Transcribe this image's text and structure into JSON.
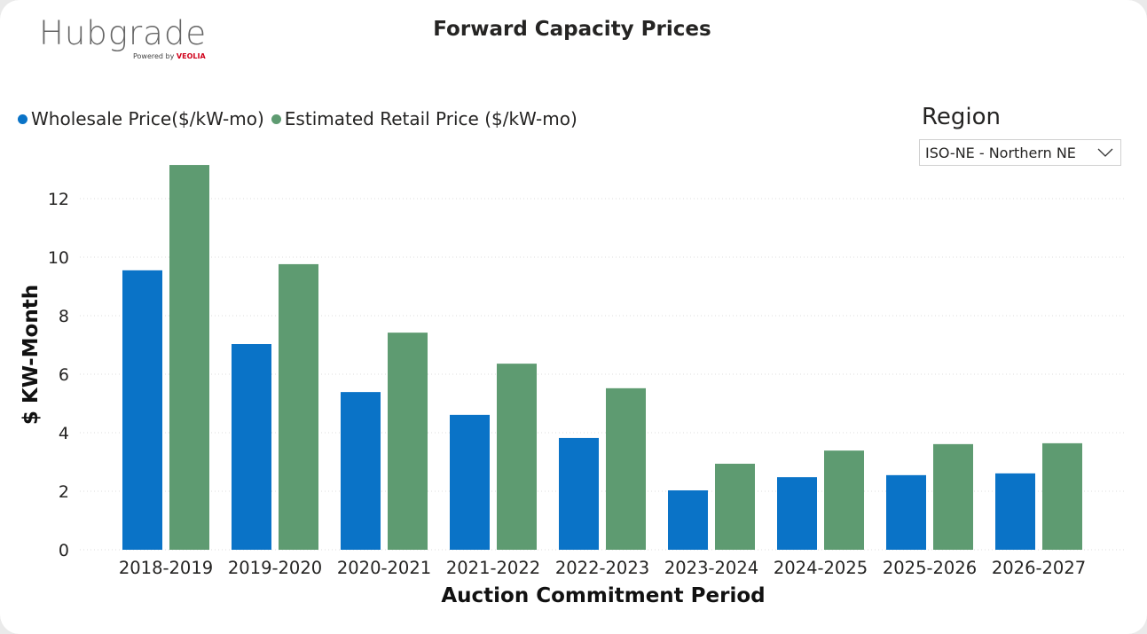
{
  "logo": {
    "name": "Hubgrade",
    "powered_by": "Powered by",
    "brand": "VEOLIA"
  },
  "region": {
    "label": "Region",
    "selected": "ISO-NE - Northern NE"
  },
  "chart_data": {
    "type": "bar",
    "title": "Forward Capacity Prices",
    "xlabel": "Auction Commitment Period",
    "ylabel": "$ KW-Month",
    "ylim": [
      0,
      13.5
    ],
    "yticks": [
      0,
      2,
      4,
      6,
      8,
      10,
      12
    ],
    "grid": true,
    "legend_position": "top-left",
    "categories": [
      "2018-2019",
      "2019-2020",
      "2020-2021",
      "2021-2022",
      "2022-2023",
      "2023-2024",
      "2024-2025",
      "2025-2026",
      "2026-2027"
    ],
    "series": [
      {
        "name": "Wholesale Price($/kW-mo)",
        "color": "#0a73c7",
        "values": [
          9.55,
          7.03,
          5.39,
          4.61,
          3.82,
          2.03,
          2.48,
          2.55,
          2.61
        ]
      },
      {
        "name": "Estimated Retail Price ($/kW-mo)",
        "color": "#5e9b71",
        "values": [
          13.15,
          9.76,
          7.42,
          6.36,
          5.52,
          2.94,
          3.39,
          3.61,
          3.64
        ]
      }
    ]
  }
}
